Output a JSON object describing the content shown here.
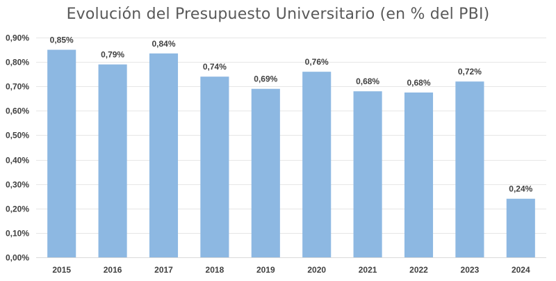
{
  "chart_data": {
    "type": "bar",
    "title": "Evolución del Presupuesto Universitario (en % del PBI)",
    "xlabel": "",
    "ylabel": "",
    "categories": [
      "2015",
      "2016",
      "2017",
      "2018",
      "2019",
      "2020",
      "2021",
      "2022",
      "2023",
      "2024"
    ],
    "values": [
      0.85,
      0.79,
      0.835,
      0.74,
      0.69,
      0.76,
      0.68,
      0.675,
      0.72,
      0.24
    ],
    "data_labels": [
      "0,85%",
      "0,79%",
      "0,84%",
      "0,74%",
      "0,69%",
      "0,76%",
      "0,68%",
      "0,68%",
      "0,72%",
      "0,24%"
    ],
    "ylim": [
      0,
      0.9
    ],
    "yticks": [
      0,
      0.1,
      0.2,
      0.3,
      0.4,
      0.5,
      0.6,
      0.7,
      0.8,
      0.9
    ],
    "ytick_labels": [
      "0,00%",
      "0,10%",
      "0,20%",
      "0,30%",
      "0,40%",
      "0,50%",
      "0,60%",
      "0,70%",
      "0,80%",
      "0,90%"
    ],
    "grid": true,
    "legend": "none",
    "bar_color": "#8db8e2"
  }
}
